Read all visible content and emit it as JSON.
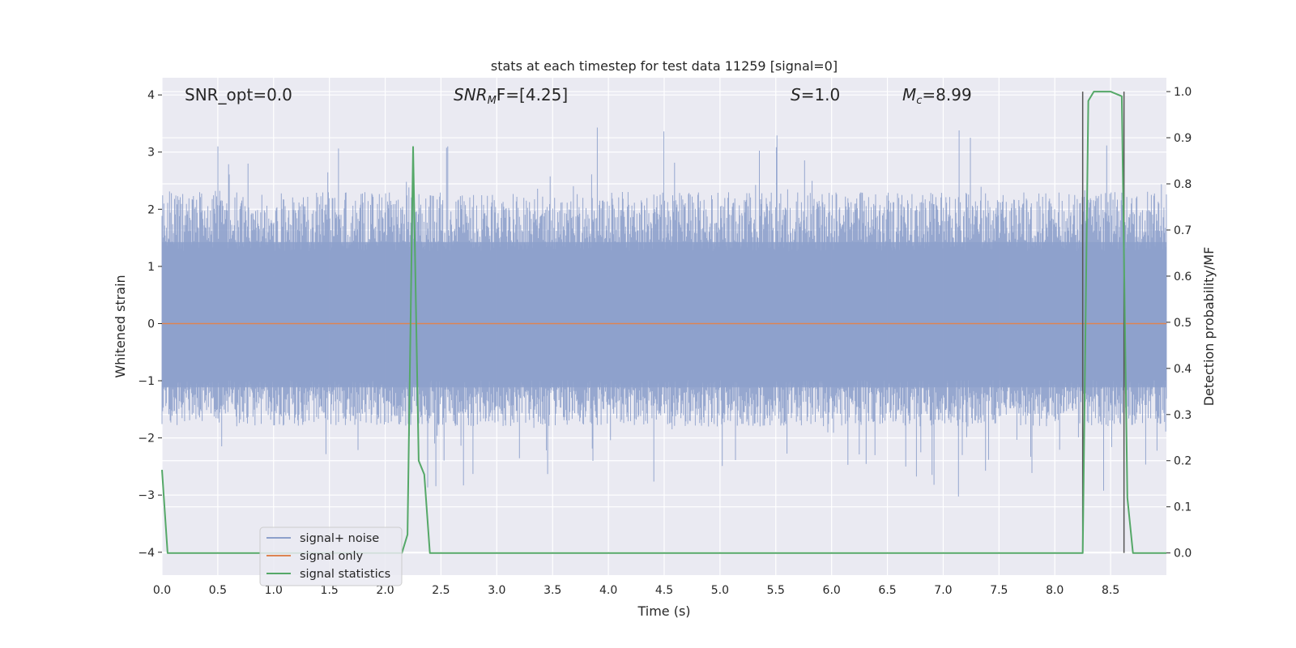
{
  "chart_data": {
    "type": "line",
    "title": "stats at each timestep for test data 11259 [signal=0]",
    "xlabel": "Time (s)",
    "ylabel_left": "Whitened strain",
    "ylabel_right": "Detection probability/MF",
    "xlim": [
      0.0,
      9.0
    ],
    "ylim_left": [
      -4.4,
      4.3
    ],
    "ylim_right": [
      -0.048,
      1.03
    ],
    "x_ticks": [
      "0.0",
      "0.5",
      "1.0",
      "1.5",
      "2.0",
      "2.5",
      "3.0",
      "3.5",
      "4.0",
      "4.5",
      "5.0",
      "5.5",
      "6.0",
      "6.5",
      "7.0",
      "7.5",
      "8.0",
      "8.5"
    ],
    "y_ticks_left": [
      "4",
      "3",
      "2",
      "1",
      "0",
      "−1",
      "−2",
      "−3",
      "−4"
    ],
    "y_ticks_right": [
      "1.0",
      "0.9",
      "0.8",
      "0.7",
      "0.6",
      "0.5",
      "0.4",
      "0.3",
      "0.2",
      "0.1",
      "0.0"
    ],
    "grid": true,
    "annotations": {
      "snr_opt": "SNR_opt=0.0",
      "snr_mf_main": "SNR",
      "snr_mf_sub": "M",
      "snr_mf_rest": "F=[4.25]",
      "s_main": "S",
      "s_rest": "=1.0",
      "mc_main": "M",
      "mc_sub": "c",
      "mc_rest": "=8.99"
    },
    "legend": {
      "placement": "lower-left",
      "entries": [
        "signal+ noise",
        "signal only",
        "signal statistics"
      ]
    },
    "series": [
      {
        "name": "signal+ noise",
        "axis": "left",
        "color": "#8da0cb",
        "description_range": [
          -4.0,
          3.9
        ],
        "typical_range": [
          -1.8,
          2.3
        ]
      },
      {
        "name": "signal only",
        "axis": "left",
        "color": "#dd8452",
        "x": [
          0.0,
          9.0
        ],
        "y": [
          0.0,
          0.0
        ]
      },
      {
        "name": "signal statistics",
        "axis": "right",
        "color": "#55a868",
        "x": [
          0.0,
          0.05,
          0.1,
          0.15,
          0.2,
          2.15,
          2.2,
          2.25,
          2.3,
          2.35,
          2.4,
          2.45,
          5.0,
          5.05,
          5.1,
          8.2,
          8.25,
          8.3,
          8.35,
          8.4,
          8.5,
          8.6,
          8.65,
          8.7,
          8.75,
          8.8,
          8.85,
          8.9,
          8.95,
          9.0
        ],
        "y": [
          0.18,
          0.0,
          0.0,
          0.0,
          0.0,
          0.0,
          0.04,
          0.88,
          0.2,
          0.17,
          0.0,
          0.0,
          0.0,
          0.0,
          0.0,
          0.0,
          0.0,
          0.98,
          1.0,
          1.0,
          1.0,
          0.99,
          0.12,
          0.0,
          0.0,
          0.0,
          0.0,
          0.0,
          0.0,
          0.0
        ]
      },
      {
        "name": "detection markers",
        "axis": "right",
        "color": "#555555",
        "x": [
          8.25,
          8.62
        ],
        "y": [
          0.0,
          0.0
        ],
        "y_top": [
          1.0,
          1.0
        ]
      }
    ]
  }
}
